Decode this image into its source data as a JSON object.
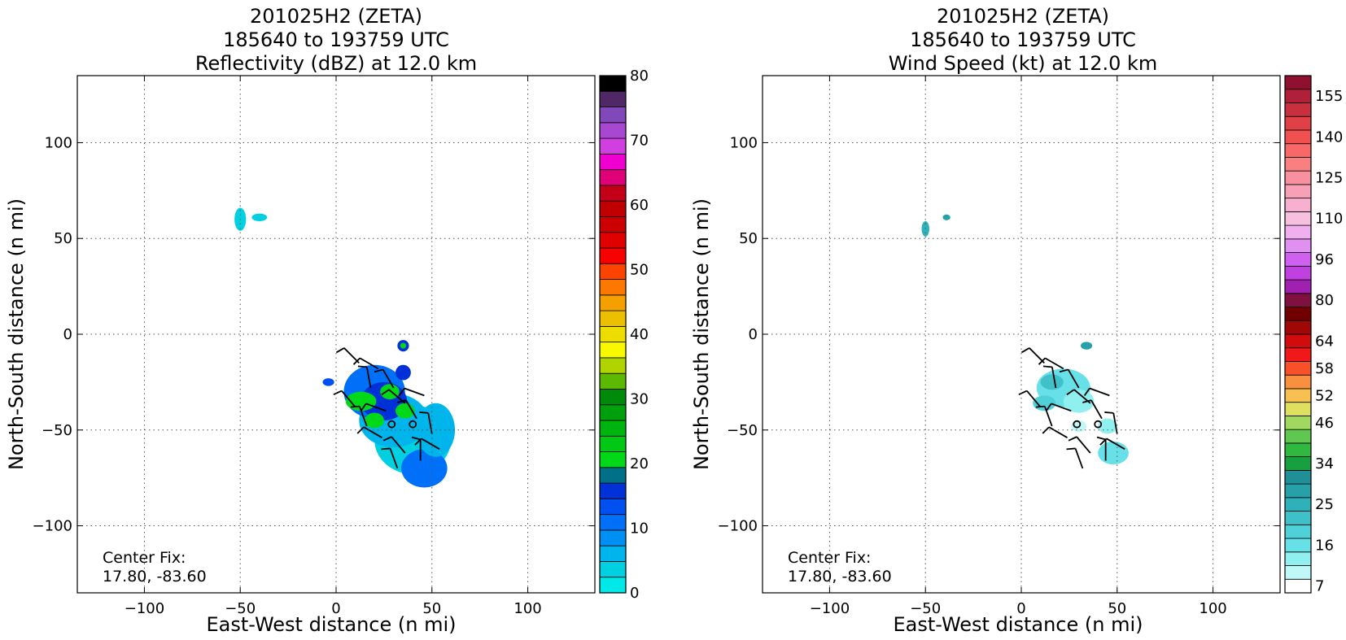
{
  "chart_data": [
    {
      "type": "heatmap",
      "title_lines": [
        "201025H2 (ZETA)",
        "185640 to 193759 UTC",
        "Reflectivity (dBZ) at 12.0 km"
      ],
      "xlabel": "East-West distance (n mi)",
      "ylabel": "North-South distance (n mi)",
      "xlim": [
        -135,
        135
      ],
      "ylim": [
        -135,
        135
      ],
      "xticks": [
        "−100",
        "−50",
        "0",
        "50",
        "100"
      ],
      "xtick_values": [
        -100,
        -50,
        0,
        50,
        100
      ],
      "yticks": [
        "−100",
        "−50",
        "0",
        "50",
        "100"
      ],
      "ytick_values": [
        -100,
        -50,
        0,
        50,
        100
      ],
      "grid": true,
      "annotation": {
        "line1": "Center Fix:",
        "line2": "17.80, -83.60"
      },
      "colorbar": {
        "min": 0,
        "max": 80,
        "step": 5,
        "tick_values": [
          0,
          10,
          20,
          30,
          40,
          50,
          60,
          70,
          80
        ],
        "tick_labels": [
          "0",
          "10",
          "20",
          "30",
          "40",
          "50",
          "60",
          "70",
          "80"
        ],
        "colors": [
          "#00e8e8",
          "#00d0e0",
          "#00b4ec",
          "#0090f4",
          "#0070f8",
          "#0050f0",
          "#0030d8",
          "#007088",
          "#00d818",
          "#00c814",
          "#00b410",
          "#00a00c",
          "#008a0a",
          "#5cb800",
          "#b0d400",
          "#f8f800",
          "#ecdc00",
          "#ecc000",
          "#f4a000",
          "#fc7800",
          "#fc4400",
          "#f80000",
          "#e00000",
          "#cc0000",
          "#c00000",
          "#c40018",
          "#e00078",
          "#f000d0",
          "#d040e0",
          "#a848d0",
          "#8048b8",
          "#502868",
          "#000000"
        ]
      },
      "echo_cells": [
        {
          "x": -50,
          "y": 60,
          "rx": 3,
          "ry": 6,
          "level": 1
        },
        {
          "x": -40,
          "y": 61,
          "rx": 4,
          "ry": 2,
          "level": 1
        },
        {
          "x": 40,
          "y": -55,
          "rx": 20,
          "ry": 18,
          "level": 1
        },
        {
          "x": 46,
          "y": -70,
          "rx": 12,
          "ry": 10,
          "level": 4
        },
        {
          "x": 30,
          "y": -45,
          "rx": 18,
          "ry": 14,
          "level": 2
        },
        {
          "x": 20,
          "y": -30,
          "rx": 16,
          "ry": 14,
          "level": 4
        },
        {
          "x": 25,
          "y": -35,
          "rx": 12,
          "ry": 10,
          "level": 6
        },
        {
          "x": 13,
          "y": -35,
          "rx": 8,
          "ry": 5,
          "level": 8
        },
        {
          "x": 20,
          "y": -45,
          "rx": 5,
          "ry": 4,
          "level": 8
        },
        {
          "x": 28,
          "y": -30,
          "rx": 5,
          "ry": 4,
          "level": 8
        },
        {
          "x": 36,
          "y": -40,
          "rx": 5,
          "ry": 4,
          "level": 8
        },
        {
          "x": 35,
          "y": -6,
          "rx": 3,
          "ry": 3,
          "level": 6
        },
        {
          "x": 35,
          "y": -6,
          "rx": 1.5,
          "ry": 1.5,
          "level": 8
        },
        {
          "x": 35,
          "y": -20,
          "rx": 4,
          "ry": 4,
          "level": 6
        },
        {
          "x": -4,
          "y": -25,
          "rx": 3,
          "ry": 2,
          "level": 5
        },
        {
          "x": 52,
          "y": -50,
          "rx": 10,
          "ry": 14,
          "level": 2
        }
      ]
    },
    {
      "type": "heatmap",
      "title_lines": [
        "201025H2 (ZETA)",
        "185640 to 193759 UTC",
        "Wind Speed (kt) at 12.0 km"
      ],
      "xlabel": "East-West distance (n mi)",
      "ylabel": "North-South distance (n mi)",
      "xlim": [
        -135,
        135
      ],
      "ylim": [
        -135,
        135
      ],
      "xticks": [
        "−100",
        "−50",
        "0",
        "50",
        "100"
      ],
      "xtick_values": [
        -100,
        -50,
        0,
        50,
        100
      ],
      "yticks": [
        "−100",
        "−50",
        "0",
        "50",
        "100"
      ],
      "ytick_values": [
        -100,
        -50,
        0,
        50,
        100
      ],
      "grid": true,
      "annotation": {
        "line1": "Center Fix:",
        "line2": "17.80, -83.60"
      },
      "colorbar": {
        "tick_labels": [
          "7",
          "16",
          "25",
          "34",
          "46",
          "52",
          "58",
          "64",
          "80",
          "96",
          "110",
          "125",
          "140",
          "155"
        ],
        "tick_indices": [
          0.5,
          3.5,
          6.5,
          9.5,
          12.5,
          14.5,
          16.5,
          18.5,
          21.5,
          24.5,
          27.5,
          30.5,
          33.5,
          36.5
        ],
        "colors": [
          "#ffffff",
          "#c0f8f8",
          "#90f0f0",
          "#68e0e8",
          "#50d0d8",
          "#40c0c8",
          "#30b0b8",
          "#28a0a8",
          "#209098",
          "#18a040",
          "#30b840",
          "#60c850",
          "#a0d860",
          "#e0e060",
          "#f8c050",
          "#f89040",
          "#f85028",
          "#f01818",
          "#d00c0c",
          "#a00808",
          "#700000",
          "#801040",
          "#a020b0",
          "#c040e0",
          "#d060f0",
          "#e090f0",
          "#f0b0f0",
          "#f8c0e0",
          "#f8b0d0",
          "#f8a0b8",
          "#f890a0",
          "#f88080",
          "#f86868",
          "#f05050",
          "#e04048",
          "#c83040",
          "#b02038",
          "#901030"
        ]
      },
      "echo_cells": [
        {
          "x": -50,
          "y": 55,
          "rx": 2,
          "ry": 4,
          "level": 6
        },
        {
          "x": -39,
          "y": 61,
          "rx": 2,
          "ry": 1.5,
          "level": 7
        },
        {
          "x": 34,
          "y": -6,
          "rx": 3,
          "ry": 2,
          "level": 7
        },
        {
          "x": 22,
          "y": -28,
          "rx": 14,
          "ry": 10,
          "level": 3
        },
        {
          "x": 16,
          "y": -25,
          "rx": 6,
          "ry": 4,
          "level": 5
        },
        {
          "x": 30,
          "y": -35,
          "rx": 8,
          "ry": 6,
          "level": 2
        },
        {
          "x": 12,
          "y": -36,
          "rx": 6,
          "ry": 4,
          "level": 4
        },
        {
          "x": 48,
          "y": -62,
          "rx": 8,
          "ry": 6,
          "level": 3
        },
        {
          "x": 45,
          "y": -48,
          "rx": 5,
          "ry": 4,
          "level": 2
        },
        {
          "x": 30,
          "y": -48,
          "rx": 4,
          "ry": 3,
          "level": 1
        }
      ]
    }
  ]
}
